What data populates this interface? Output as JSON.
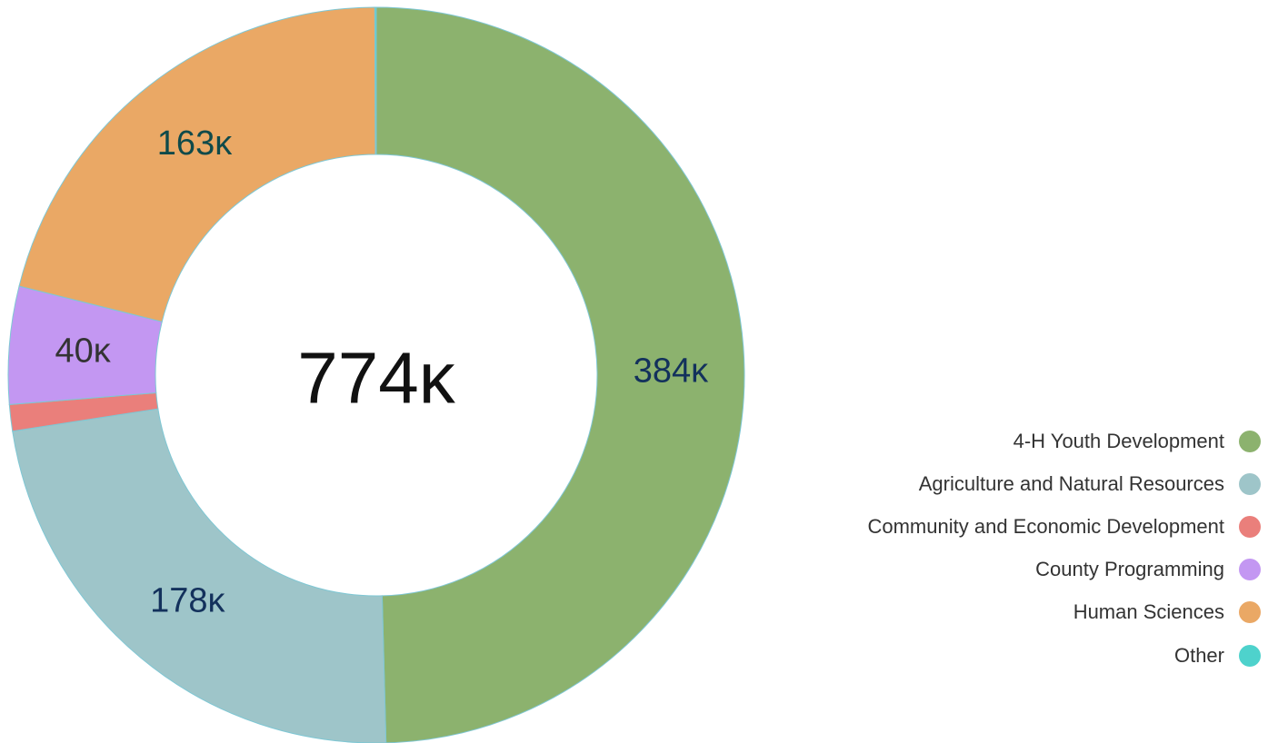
{
  "chart_data": {
    "type": "pie",
    "donut": true,
    "total_label": "774κ",
    "legend_position": "right",
    "slices": [
      {
        "name": "4-H Youth Development",
        "value": 384,
        "label": "384κ",
        "color": "#8cb26e",
        "label_color": "#13315c"
      },
      {
        "name": "Agriculture and Natural Resources",
        "value": 178,
        "label": "178κ",
        "color": "#9ec5c9",
        "label_color": "#13315c"
      },
      {
        "name": "Community and Economic Development",
        "value": 9,
        "label": "",
        "color": "#ea7f7b",
        "label_color": "#13315c"
      },
      {
        "name": "County Programming",
        "value": 40,
        "label": "40κ",
        "color": "#c397f2",
        "label_color": "#333333"
      },
      {
        "name": "Human Sciences",
        "value": 163,
        "label": "163κ",
        "color": "#eaa865",
        "label_color": "#0f4a4a"
      },
      {
        "name": "Other",
        "value": 0.5,
        "label": "",
        "color": "#4ed2cc",
        "label_color": "#13315c"
      }
    ]
  }
}
